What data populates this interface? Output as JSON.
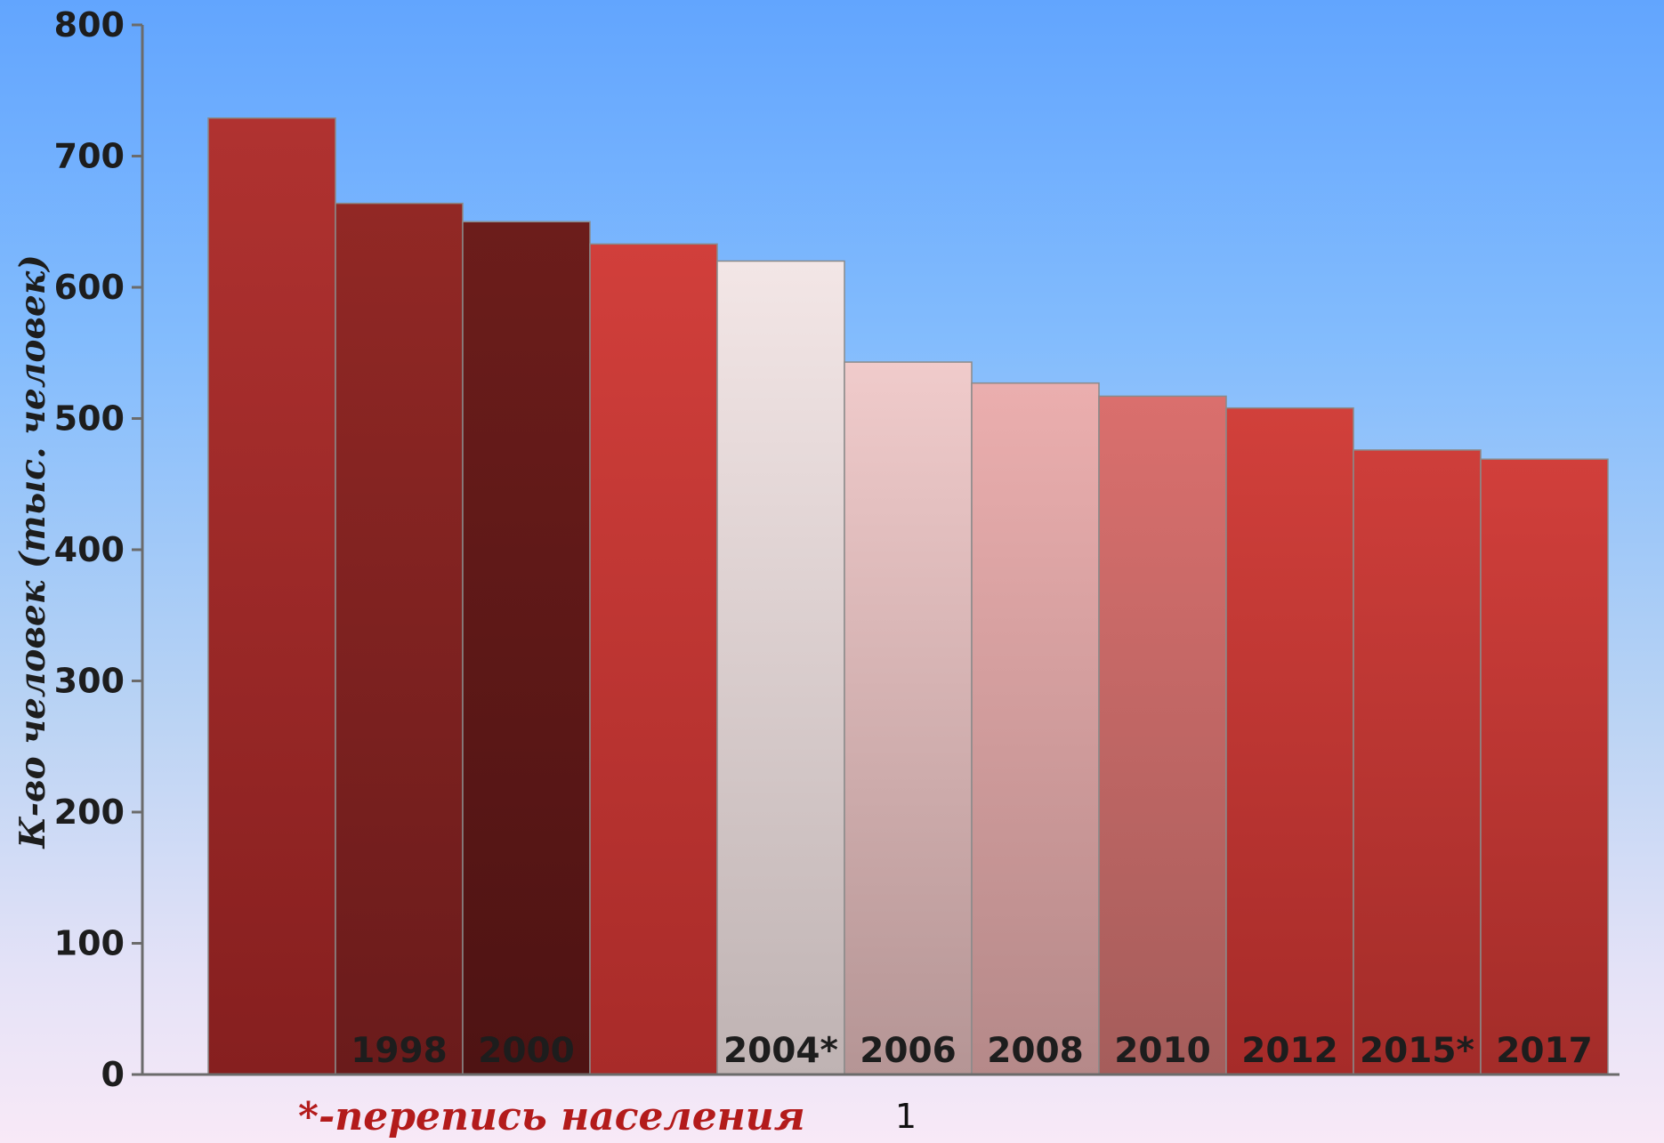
{
  "chart_data": {
    "type": "bar",
    "title": "",
    "xlabel": "",
    "ylabel": "К-во человек (тыс. человек)",
    "ylim": [
      0,
      800
    ],
    "yticks": [
      0,
      100,
      200,
      300,
      400,
      500,
      600,
      700,
      800
    ],
    "grid": false,
    "legend_placement": "bottom",
    "series": [
      {
        "name": "1",
        "values": [
          729,
          664,
          650,
          633,
          620,
          543,
          527,
          517,
          508,
          476,
          469
        ]
      }
    ],
    "categories": [
      "",
      "1998",
      "2000",
      "",
      "2004*",
      "2006",
      "2008",
      "2010",
      "2012",
      "2015*",
      "2017"
    ],
    "bar_gradients": [
      [
        "#b03230",
        "#861f1f"
      ],
      [
        "#922825",
        "#6a1b1b"
      ],
      [
        "#6c1d1b",
        "#4e1313"
      ],
      [
        "#d13f3b",
        "#a82b29"
      ],
      [
        "#f3e6e6",
        "#bfb3b3"
      ],
      [
        "#f0cbcb",
        "#b59595"
      ],
      [
        "#ebaeae",
        "#b58989"
      ],
      [
        "#da6f6d",
        "#a55d5b"
      ],
      [
        "#d1403b",
        "#a62b29"
      ],
      [
        "#ce3e3a",
        "#a32c29"
      ],
      [
        "#d13f3b",
        "#a32c29"
      ]
    ],
    "annotations": [
      "*-перепись населения"
    ]
  }
}
